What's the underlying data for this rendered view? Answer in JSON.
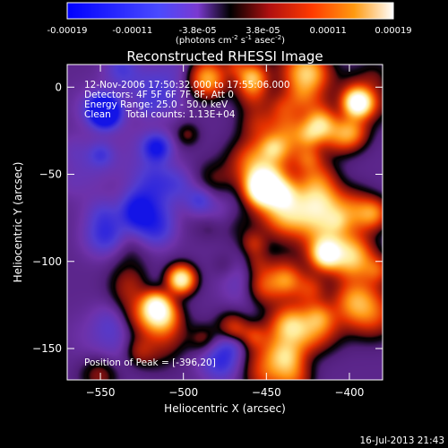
{
  "colorbar": {
    "ticks": [
      "-0.00019",
      "-0.00011",
      "-3.8e-05",
      "3.8e-05",
      "0.00011",
      "0.00019"
    ],
    "units_text": "(photons cm",
    "units_sup1": "-2",
    "units_mid": " s",
    "units_sup2": "-1",
    "units_tail": " asec",
    "units_sup3": "-2",
    "units_close": ")"
  },
  "plot": {
    "title": "Reconstructed RHESSI Image",
    "xlabel": "Heliocentric X (arcsec)",
    "ylabel": "Heliocentric Y (arcsec)",
    "x_ticks": [
      "−550",
      "−500",
      "−450",
      "−400"
    ],
    "x_tick_values": [
      -550,
      -500,
      -450,
      -400
    ],
    "y_ticks": [
      "0",
      "−50",
      "−100",
      "−150"
    ],
    "y_tick_values": [
      0,
      -50,
      -100,
      -150
    ],
    "xlim": [
      -570,
      -380
    ],
    "ylim": [
      -168,
      13
    ]
  },
  "annotations": {
    "line1": "12-Nov-2006 17:50:32.000 to 17:55:06.000",
    "line2": "Detectors: 4F 5F 6F 7F 8F, Att 0",
    "line3": "Energy Range: 25.0 - 50.0 keV",
    "line4": "Clean     Total counts: 1.13E+04",
    "peak": "Position of Peak = [-396,20]"
  },
  "footer": {
    "timestamp": "16-Jul-2013 21:43"
  },
  "colormap": {
    "stops": [
      "#000000",
      "#1a1aff",
      "#6a2ab0",
      "#3a1a70",
      "#000000",
      "#8a1010",
      "#ff2a00",
      "#ff8a00",
      "#ffe070",
      "#ffffff"
    ]
  }
}
